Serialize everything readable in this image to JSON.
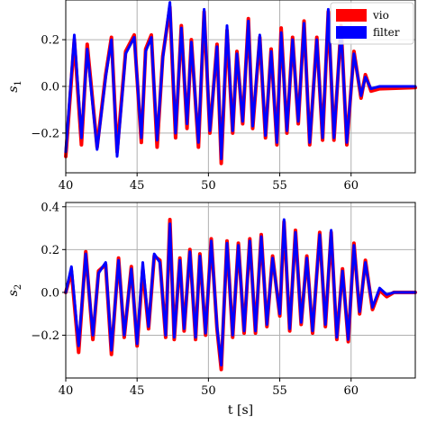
{
  "chart_data": [
    {
      "type": "line",
      "ylabel_base": "s",
      "ylabel_sub": "1",
      "xlim": [
        40,
        64.5
      ],
      "ylim": [
        -0.37,
        0.37
      ],
      "xticks": [
        40,
        45,
        50,
        55,
        60
      ],
      "yticks": [
        -0.2,
        0.0,
        0.2
      ],
      "ytick_labels": [
        "−0.2",
        "0.0",
        "0.2"
      ],
      "grid": true,
      "legend": {
        "placement": "top-right",
        "entries": [
          "vio",
          "filter"
        ]
      },
      "series": [
        {
          "name": "vio",
          "color": "#ff0000",
          "values": [
            [
              40.0,
              -0.3
            ],
            [
              40.6,
              0.2
            ],
            [
              41.1,
              -0.25
            ],
            [
              41.5,
              0.18
            ],
            [
              42.2,
              -0.26
            ],
            [
              42.8,
              0.05
            ],
            [
              43.2,
              0.21
            ],
            [
              43.6,
              -0.28
            ],
            [
              44.2,
              0.15
            ],
            [
              44.8,
              0.22
            ],
            [
              45.3,
              -0.24
            ],
            [
              45.6,
              0.16
            ],
            [
              46.0,
              0.22
            ],
            [
              46.4,
              -0.26
            ],
            [
              46.8,
              0.13
            ],
            [
              47.3,
              0.34
            ],
            [
              47.7,
              -0.22
            ],
            [
              48.1,
              0.26
            ],
            [
              48.5,
              -0.18
            ],
            [
              48.8,
              0.2
            ],
            [
              49.3,
              -0.26
            ],
            [
              49.7,
              0.32
            ],
            [
              50.1,
              -0.2
            ],
            [
              50.6,
              0.18
            ],
            [
              50.9,
              -0.33
            ],
            [
              51.3,
              0.24
            ],
            [
              51.7,
              -0.2
            ],
            [
              52.0,
              0.15
            ],
            [
              52.4,
              -0.16
            ],
            [
              52.8,
              0.29
            ],
            [
              53.1,
              -0.18
            ],
            [
              53.6,
              0.21
            ],
            [
              54.0,
              -0.22
            ],
            [
              54.4,
              0.16
            ],
            [
              54.8,
              -0.25
            ],
            [
              55.1,
              0.25
            ],
            [
              55.5,
              -0.2
            ],
            [
              55.9,
              0.21
            ],
            [
              56.3,
              -0.16
            ],
            [
              56.7,
              0.28
            ],
            [
              57.1,
              -0.25
            ],
            [
              57.6,
              0.21
            ],
            [
              58.0,
              -0.23
            ],
            [
              58.4,
              0.32
            ],
            [
              58.8,
              -0.23
            ],
            [
              59.3,
              0.26
            ],
            [
              59.7,
              -0.25
            ],
            [
              60.2,
              0.15
            ],
            [
              60.7,
              -0.05
            ],
            [
              61.0,
              0.05
            ],
            [
              61.4,
              -0.02
            ],
            [
              62.0,
              -0.01
            ],
            [
              64.5,
              -0.005
            ]
          ]
        },
        {
          "name": "filter",
          "color": "#0000ff",
          "values": [
            [
              40.0,
              -0.28
            ],
            [
              40.6,
              0.22
            ],
            [
              41.1,
              -0.22
            ],
            [
              41.5,
              0.16
            ],
            [
              42.2,
              -0.27
            ],
            [
              42.8,
              0.04
            ],
            [
              43.2,
              0.2
            ],
            [
              43.6,
              -0.3
            ],
            [
              44.2,
              0.14
            ],
            [
              44.8,
              0.21
            ],
            [
              45.3,
              -0.22
            ],
            [
              45.6,
              0.15
            ],
            [
              46.0,
              0.21
            ],
            [
              46.4,
              -0.23
            ],
            [
              46.8,
              0.12
            ],
            [
              47.3,
              0.36
            ],
            [
              47.7,
              -0.2
            ],
            [
              48.1,
              0.25
            ],
            [
              48.5,
              -0.16
            ],
            [
              48.8,
              0.19
            ],
            [
              49.3,
              -0.24
            ],
            [
              49.7,
              0.33
            ],
            [
              50.1,
              -0.19
            ],
            [
              50.6,
              0.17
            ],
            [
              50.9,
              -0.31
            ],
            [
              51.3,
              0.26
            ],
            [
              51.7,
              -0.19
            ],
            [
              52.0,
              0.14
            ],
            [
              52.4,
              -0.15
            ],
            [
              52.8,
              0.28
            ],
            [
              53.1,
              -0.17
            ],
            [
              53.6,
              0.22
            ],
            [
              54.0,
              -0.21
            ],
            [
              54.4,
              0.15
            ],
            [
              54.8,
              -0.24
            ],
            [
              55.1,
              0.23
            ],
            [
              55.5,
              -0.19
            ],
            [
              55.9,
              0.2
            ],
            [
              56.3,
              -0.15
            ],
            [
              56.7,
              0.27
            ],
            [
              57.1,
              -0.24
            ],
            [
              57.6,
              0.2
            ],
            [
              58.0,
              -0.22
            ],
            [
              58.4,
              0.33
            ],
            [
              58.8,
              -0.22
            ],
            [
              59.3,
              0.25
            ],
            [
              59.7,
              -0.24
            ],
            [
              60.2,
              0.14
            ],
            [
              60.7,
              -0.04
            ],
            [
              61.0,
              0.04
            ],
            [
              61.4,
              -0.01
            ],
            [
              62.0,
              0.0
            ],
            [
              64.5,
              0.0
            ]
          ]
        }
      ]
    },
    {
      "type": "line",
      "ylabel_base": "s",
      "ylabel_sub": "2",
      "xlabel": "t [s]",
      "xlim": [
        40,
        64.5
      ],
      "ylim": [
        -0.4,
        0.42
      ],
      "xticks": [
        40,
        45,
        50,
        55,
        60
      ],
      "yticks": [
        -0.2,
        0.0,
        0.2,
        0.4
      ],
      "ytick_labels": [
        "−0.2",
        "0.0",
        "0.2",
        "0.4"
      ],
      "grid": true,
      "series": [
        {
          "name": "vio",
          "color": "#ff0000",
          "values": [
            [
              40.0,
              0.0
            ],
            [
              40.4,
              0.1
            ],
            [
              40.9,
              -0.28
            ],
            [
              41.4,
              0.19
            ],
            [
              41.9,
              -0.22
            ],
            [
              42.3,
              0.1
            ],
            [
              42.8,
              0.13
            ],
            [
              43.2,
              -0.29
            ],
            [
              43.7,
              0.16
            ],
            [
              44.1,
              -0.21
            ],
            [
              44.6,
              0.12
            ],
            [
              45.0,
              -0.25
            ],
            [
              45.4,
              0.11
            ],
            [
              45.8,
              -0.17
            ],
            [
              46.2,
              0.17
            ],
            [
              46.6,
              0.15
            ],
            [
              47.0,
              -0.21
            ],
            [
              47.3,
              0.34
            ],
            [
              47.6,
              -0.22
            ],
            [
              48.0,
              0.16
            ],
            [
              48.3,
              -0.18
            ],
            [
              48.7,
              0.2
            ],
            [
              49.1,
              -0.22
            ],
            [
              49.4,
              0.18
            ],
            [
              49.8,
              -0.2
            ],
            [
              50.2,
              0.25
            ],
            [
              50.6,
              -0.17
            ],
            [
              50.9,
              -0.36
            ],
            [
              51.3,
              0.24
            ],
            [
              51.7,
              -0.21
            ],
            [
              52.1,
              0.23
            ],
            [
              52.5,
              -0.19
            ],
            [
              52.9,
              0.25
            ],
            [
              53.3,
              -0.19
            ],
            [
              53.7,
              0.27
            ],
            [
              54.1,
              -0.16
            ],
            [
              54.5,
              0.17
            ],
            [
              55.0,
              -0.11
            ],
            [
              55.3,
              0.33
            ],
            [
              55.7,
              -0.18
            ],
            [
              56.1,
              0.29
            ],
            [
              56.5,
              -0.15
            ],
            [
              56.9,
              0.17
            ],
            [
              57.3,
              -0.19
            ],
            [
              57.8,
              0.28
            ],
            [
              58.2,
              -0.16
            ],
            [
              58.6,
              0.28
            ],
            [
              59.0,
              -0.22
            ],
            [
              59.4,
              0.11
            ],
            [
              59.8,
              -0.23
            ],
            [
              60.2,
              0.23
            ],
            [
              60.6,
              -0.1
            ],
            [
              61.0,
              0.15
            ],
            [
              61.5,
              -0.08
            ],
            [
              62.0,
              0.01
            ],
            [
              62.5,
              -0.02
            ],
            [
              63.0,
              0.0
            ],
            [
              64.5,
              0.0
            ]
          ]
        },
        {
          "name": "filter",
          "color": "#0000ff",
          "values": [
            [
              40.0,
              0.0
            ],
            [
              40.4,
              0.12
            ],
            [
              40.9,
              -0.25
            ],
            [
              41.4,
              0.18
            ],
            [
              41.9,
              -0.2
            ],
            [
              42.3,
              0.09
            ],
            [
              42.8,
              0.14
            ],
            [
              43.2,
              -0.27
            ],
            [
              43.7,
              0.15
            ],
            [
              44.1,
              -0.2
            ],
            [
              44.6,
              0.11
            ],
            [
              45.0,
              -0.24
            ],
            [
              45.4,
              0.14
            ],
            [
              45.8,
              -0.16
            ],
            [
              46.2,
              0.18
            ],
            [
              46.6,
              0.14
            ],
            [
              47.0,
              -0.2
            ],
            [
              47.3,
              0.32
            ],
            [
              47.6,
              -0.21
            ],
            [
              48.0,
              0.15
            ],
            [
              48.3,
              -0.17
            ],
            [
              48.7,
              0.19
            ],
            [
              49.1,
              -0.21
            ],
            [
              49.4,
              0.17
            ],
            [
              49.8,
              -0.19
            ],
            [
              50.2,
              0.24
            ],
            [
              50.6,
              -0.16
            ],
            [
              50.9,
              -0.34
            ],
            [
              51.3,
              0.23
            ],
            [
              51.7,
              -0.2
            ],
            [
              52.1,
              0.22
            ],
            [
              52.5,
              -0.18
            ],
            [
              52.9,
              0.24
            ],
            [
              53.3,
              -0.18
            ],
            [
              53.7,
              0.26
            ],
            [
              54.1,
              -0.15
            ],
            [
              54.5,
              0.16
            ],
            [
              55.0,
              -0.1
            ],
            [
              55.3,
              0.34
            ],
            [
              55.7,
              -0.17
            ],
            [
              56.1,
              0.28
            ],
            [
              56.5,
              -0.14
            ],
            [
              56.9,
              0.16
            ],
            [
              57.3,
              -0.18
            ],
            [
              57.8,
              0.27
            ],
            [
              58.2,
              -0.15
            ],
            [
              58.6,
              0.29
            ],
            [
              59.0,
              -0.21
            ],
            [
              59.4,
              0.1
            ],
            [
              59.8,
              -0.22
            ],
            [
              60.2,
              0.22
            ],
            [
              60.6,
              -0.09
            ],
            [
              61.0,
              0.14
            ],
            [
              61.5,
              -0.07
            ],
            [
              62.0,
              0.02
            ],
            [
              62.5,
              -0.01
            ],
            [
              63.0,
              0.0
            ],
            [
              64.5,
              0.0
            ]
          ]
        }
      ]
    }
  ]
}
